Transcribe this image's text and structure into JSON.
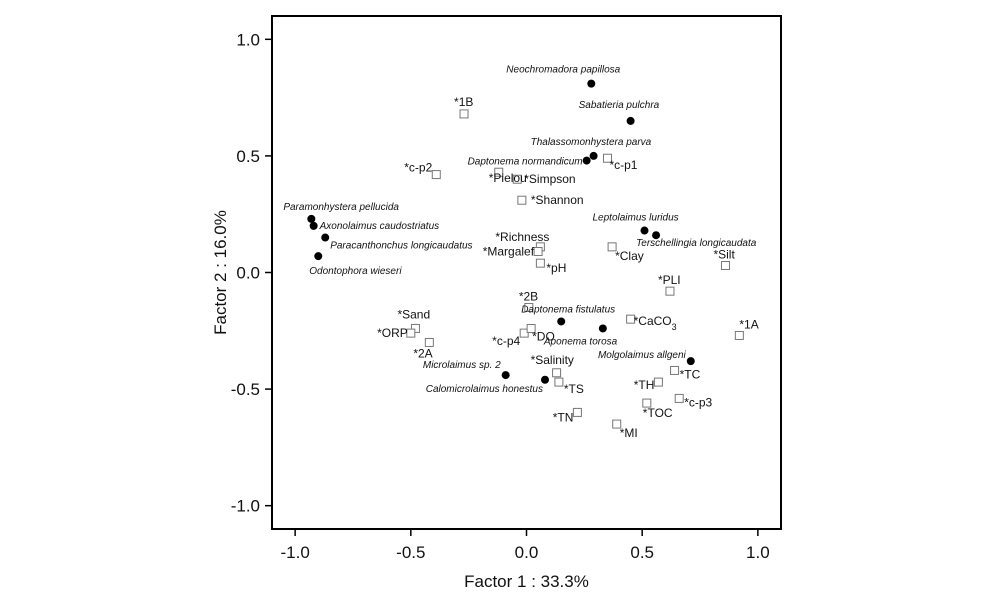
{
  "chart_data": {
    "type": "scatter",
    "xlabel": "Factor 1 : 33.3%",
    "ylabel": "Factor 2 : 16.0%",
    "xlim": [
      -1.1,
      1.1
    ],
    "ylim": [
      -1.1,
      1.1
    ],
    "x_ticks": [
      "-1.0",
      "-0.5",
      "0.0",
      "0.5",
      "1.0"
    ],
    "x_tick_values": [
      -1.0,
      -0.5,
      0.0,
      0.5,
      1.0
    ],
    "y_ticks": [
      "1.0",
      "0.5",
      "0.0",
      "-0.5",
      "-1.0"
    ],
    "y_tick_values": [
      1.0,
      0.5,
      0.0,
      -0.5,
      -1.0
    ],
    "grid": false,
    "series": [
      {
        "marker": "filled-circle",
        "color": "#000000",
        "points": [
          {
            "label": "Neochromadora papillosa",
            "x": 0.28,
            "y": 0.81
          },
          {
            "label": "Sabatieria pulchra",
            "x": 0.45,
            "y": 0.65
          },
          {
            "label": "Thalassomonhystera parva",
            "x": 0.29,
            "y": 0.5
          },
          {
            "label": "Daptonema normandicum",
            "x": 0.26,
            "y": 0.48
          },
          {
            "label": "Paramonhystera pellucida",
            "x": -0.93,
            "y": 0.23
          },
          {
            "label": "Axonolaimus caudostriatus",
            "x": -0.92,
            "y": 0.2
          },
          {
            "label": "Paracanthonchus longicaudatus",
            "x": -0.87,
            "y": 0.15
          },
          {
            "label": "Odontophora wieseri",
            "x": -0.9,
            "y": 0.07
          },
          {
            "label": "Leptolaimus luridus",
            "x": 0.51,
            "y": 0.18
          },
          {
            "label": "Terschellingia longicaudata",
            "x": 0.56,
            "y": 0.16
          },
          {
            "label": "Daptonema fistulatus",
            "x": 0.15,
            "y": -0.21
          },
          {
            "label": "Aponema torosa",
            "x": 0.33,
            "y": -0.24
          },
          {
            "label": "Molgolaimus allgeni",
            "x": 0.71,
            "y": -0.38
          },
          {
            "label": "Microlaimus sp. 2",
            "x": -0.09,
            "y": -0.44
          },
          {
            "label": "Calomicrolaimus  honestus",
            "x": 0.08,
            "y": -0.46
          }
        ]
      },
      {
        "marker": "open-square",
        "color": "#777777",
        "points": [
          {
            "label": "*1B",
            "x": -0.27,
            "y": 0.68
          },
          {
            "label": "*c-p2",
            "x": -0.39,
            "y": 0.42
          },
          {
            "label": "*Pielou",
            "x": -0.12,
            "y": 0.43
          },
          {
            "label": "*Simpson",
            "x": -0.04,
            "y": 0.4
          },
          {
            "label": "*Shannon",
            "x": -0.02,
            "y": 0.31
          },
          {
            "label": "*c-p1",
            "x": 0.35,
            "y": 0.49
          },
          {
            "label": "*Richness",
            "x": 0.06,
            "y": 0.11
          },
          {
            "label": "*Margalef",
            "x": 0.05,
            "y": 0.09
          },
          {
            "label": "*pH",
            "x": 0.06,
            "y": 0.04
          },
          {
            "label": "*Clay",
            "x": 0.37,
            "y": 0.11
          },
          {
            "label": "*Silt",
            "x": 0.86,
            "y": 0.03
          },
          {
            "label": "*PLI",
            "x": 0.62,
            "y": -0.08
          },
          {
            "label": "*2B",
            "x": 0.01,
            "y": -0.15
          },
          {
            "label": "*Sand",
            "x": -0.48,
            "y": -0.24
          },
          {
            "label": "*ORP",
            "x": -0.5,
            "y": -0.26
          },
          {
            "label": "*2A",
            "x": -0.42,
            "y": -0.3
          },
          {
            "label": "*c-p4",
            "x": -0.01,
            "y": -0.26
          },
          {
            "label": "*DO",
            "x": 0.02,
            "y": -0.24
          },
          {
            "label": "*CaCO3",
            "x": 0.45,
            "y": -0.2
          },
          {
            "label": "*1A",
            "x": 0.92,
            "y": -0.27
          },
          {
            "label": "*Salinity",
            "x": 0.13,
            "y": -0.43
          },
          {
            "label": "*TS",
            "x": 0.14,
            "y": -0.47
          },
          {
            "label": "*TC",
            "x": 0.64,
            "y": -0.42
          },
          {
            "label": "*TH",
            "x": 0.57,
            "y": -0.47
          },
          {
            "label": "*c-p3",
            "x": 0.66,
            "y": -0.54
          },
          {
            "label": "*TOC",
            "x": 0.52,
            "y": -0.56
          },
          {
            "label": "*TN",
            "x": 0.22,
            "y": -0.6
          },
          {
            "label": "*MI",
            "x": 0.39,
            "y": -0.65
          }
        ]
      }
    ]
  }
}
